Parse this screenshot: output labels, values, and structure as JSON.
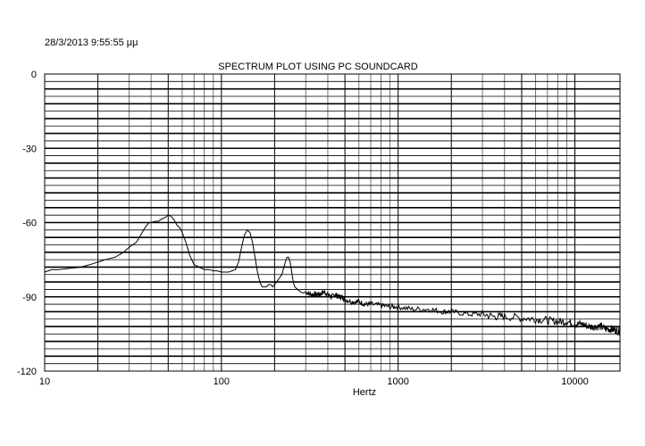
{
  "timestamp": "28/3/2013 9:55:55 μμ",
  "chart_data": {
    "type": "line",
    "title": "SPECTRUM PLOT USING PC SOUNDCARD",
    "xlabel": "Hertz",
    "ylabel": "",
    "x_scale": "log",
    "xlim": [
      10,
      18000
    ],
    "ylim": [
      -120,
      0
    ],
    "x_tick_labels": [
      "10",
      "100",
      "1000",
      "10000"
    ],
    "y_tick_labels": [
      "0",
      "-30",
      "-60",
      "-90",
      "-120"
    ],
    "grid": true,
    "line_color": "#000000",
    "series": [
      {
        "x": [
          10,
          11,
          12,
          14,
          16,
          18,
          20,
          22,
          25,
          28,
          30,
          33,
          35,
          37,
          39,
          40,
          42,
          44,
          46,
          48,
          50,
          52,
          54,
          56,
          58,
          60,
          63,
          66,
          70,
          75,
          80,
          85,
          90,
          95,
          100,
          105,
          110,
          115,
          120,
          125,
          130,
          135,
          140,
          145,
          150,
          155,
          160,
          165,
          170,
          175,
          180,
          185,
          190,
          195,
          200,
          205,
          210,
          220,
          230,
          235,
          240,
          245,
          250,
          255,
          260,
          270,
          280,
          290,
          300,
          320,
          340,
          360,
          380,
          400,
          420,
          440,
          460,
          480,
          500,
          550,
          600,
          650,
          700,
          800,
          900,
          1000,
          1200,
          1500,
          1800,
          2000,
          2500,
          3000,
          3500,
          4000,
          5000,
          6000,
          7000,
          8000,
          9000,
          10000,
          11000,
          12000,
          13000,
          14000,
          15000,
          16000,
          17000,
          18000
        ],
        "y": [
          -80,
          -79,
          -79,
          -78.5,
          -78,
          -77,
          -76,
          -75,
          -74,
          -72,
          -70,
          -68,
          -65,
          -62,
          -60,
          -60,
          -59.5,
          -59.5,
          -58.5,
          -58,
          -57,
          -57.5,
          -59,
          -61,
          -62,
          -64,
          -68,
          -73,
          -77,
          -78,
          -79,
          -79,
          -79.5,
          -79.5,
          -80,
          -80,
          -80,
          -79.5,
          -79,
          -76,
          -70,
          -65,
          -63,
          -64,
          -68,
          -74,
          -80,
          -84,
          -86,
          -86,
          -86,
          -85,
          -85,
          -86,
          -85,
          -84,
          -83,
          -81,
          -76,
          -74,
          -74,
          -76,
          -80,
          -84,
          -86,
          -87,
          -88,
          -88.5,
          -88,
          -89,
          -89,
          -89,
          -88,
          -89,
          -90,
          -89,
          -90,
          -90,
          -91,
          -92,
          -92,
          -93,
          -93,
          -93.5,
          -94,
          -94,
          -95,
          -95,
          -96,
          -96,
          -97,
          -97,
          -98,
          -98,
          -98.5,
          -99,
          -99.5,
          -100,
          -100,
          -101,
          -101,
          -102,
          -102,
          -102,
          -103,
          -103,
          -103.5,
          -104
        ]
      }
    ]
  }
}
